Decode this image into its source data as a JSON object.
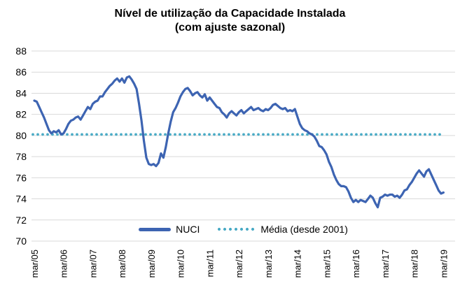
{
  "chart_data": {
    "type": "line",
    "title": "Nível de utilização da Capacidade Instalada",
    "subtitle": "(com ajuste sazonal)",
    "xlabel": "",
    "ylabel": "",
    "ylim": [
      70,
      88
    ],
    "y_ticks": [
      70,
      72,
      74,
      76,
      78,
      80,
      82,
      84,
      86,
      88
    ],
    "x_tick_labels": [
      "mar/05",
      "mar/06",
      "mar/07",
      "mar/08",
      "mar/09",
      "mar/10",
      "mar/11",
      "mar/12",
      "mar/13",
      "mar/14",
      "mar/15",
      "mar/16",
      "mar/17",
      "mar/18",
      "mar/19"
    ],
    "grid": true,
    "gridline_color": "#D9D9D9",
    "axis_text_color": "#000000",
    "legend_position": "bottom-inside",
    "series": [
      {
        "name": "NUCI",
        "style": "solid",
        "color": "#3D64B2",
        "frequency": "monthly",
        "start": "mar/05",
        "end": "mar/19",
        "values": [
          83.3,
          83.2,
          82.7,
          82.2,
          81.7,
          81.1,
          80.5,
          80.2,
          80.4,
          80.3,
          80.5,
          80.1,
          80.2,
          80.6,
          81.1,
          81.4,
          81.5,
          81.7,
          81.8,
          81.5,
          81.9,
          82.3,
          82.7,
          82.5,
          83.0,
          83.2,
          83.3,
          83.7,
          83.7,
          84.1,
          84.4,
          84.7,
          84.9,
          85.2,
          85.4,
          85.1,
          85.4,
          85.0,
          85.5,
          85.6,
          85.3,
          84.9,
          84.4,
          83.0,
          81.4,
          79.5,
          77.9,
          77.3,
          77.2,
          77.3,
          77.1,
          77.4,
          78.3,
          77.9,
          78.9,
          80.2,
          81.3,
          82.2,
          82.6,
          83.1,
          83.7,
          84.1,
          84.4,
          84.5,
          84.2,
          83.8,
          84.0,
          84.1,
          83.8,
          83.6,
          83.9,
          83.3,
          83.6,
          83.3,
          83.0,
          82.7,
          82.6,
          82.2,
          82.0,
          81.7,
          82.1,
          82.3,
          82.1,
          81.9,
          82.2,
          82.4,
          82.1,
          82.3,
          82.5,
          82.7,
          82.4,
          82.5,
          82.6,
          82.4,
          82.3,
          82.5,
          82.4,
          82.6,
          82.9,
          83.0,
          82.8,
          82.6,
          82.5,
          82.6,
          82.3,
          82.4,
          82.3,
          82.5,
          81.8,
          81.1,
          80.7,
          80.5,
          80.4,
          80.2,
          80.1,
          79.9,
          79.5,
          79.0,
          78.9,
          78.6,
          78.2,
          77.5,
          77.0,
          76.3,
          75.8,
          75.4,
          75.2,
          75.2,
          75.1,
          74.7,
          74.1,
          73.7,
          73.9,
          73.7,
          73.9,
          73.8,
          73.7,
          74.0,
          74.3,
          74.1,
          73.6,
          73.2,
          74.1,
          74.2,
          74.4,
          74.3,
          74.4,
          74.4,
          74.2,
          74.3,
          74.1,
          74.4,
          74.8,
          74.9,
          75.3,
          75.6,
          76.0,
          76.4,
          76.7,
          76.4,
          76.1,
          76.6,
          76.8,
          76.3,
          75.8,
          75.3,
          74.8,
          74.5,
          74.6
        ]
      },
      {
        "name": "Média (desde 2001)",
        "style": "dotted",
        "color": "#4AABC6",
        "value": 80.1
      }
    ]
  },
  "legend": {
    "nuci_label": "NUCI",
    "media_label": "Média (desde 2001)"
  }
}
